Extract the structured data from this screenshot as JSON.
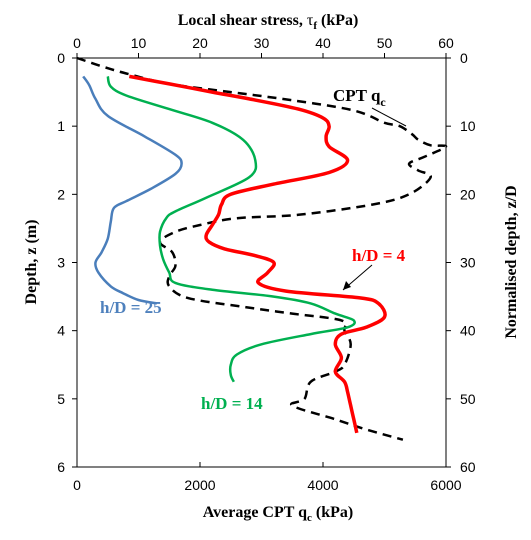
{
  "chart_data": {
    "type": "line",
    "title": "",
    "x_bottom": {
      "label_main": "Average CPT q",
      "label_sub": "c",
      "label_unit": " (kPa)",
      "range": [
        0,
        6000
      ],
      "ticks": [
        "0",
        "2000",
        "4000",
        "6000"
      ],
      "tick_values": [
        0,
        2000,
        4000,
        6000
      ]
    },
    "x_top": {
      "label_main": "Local shear stress, ",
      "label_symbol": "τ",
      "label_sub": "f",
      "label_unit": " (kPa)",
      "range": [
        0,
        60
      ],
      "ticks": [
        "0",
        "10",
        "20",
        "30",
        "40",
        "50",
        "60"
      ],
      "tick_values": [
        0,
        10,
        20,
        30,
        40,
        50,
        60
      ]
    },
    "y_left": {
      "label": "Depth, z (m)",
      "range": [
        0,
        6
      ],
      "ticks": [
        "0",
        "1",
        "2",
        "3",
        "4",
        "5",
        "6"
      ],
      "tick_values": [
        0,
        1,
        2,
        3,
        4,
        5,
        6
      ]
    },
    "y_right": {
      "label": "Normalised depth, z/D",
      "range": [
        0,
        60
      ],
      "ticks": [
        "0",
        "10",
        "20",
        "30",
        "40",
        "50",
        "60"
      ],
      "tick_values": [
        0,
        10,
        20,
        30,
        40,
        50,
        60
      ]
    },
    "series": [
      {
        "name": "CPT qc",
        "axis": "bottom",
        "color": "#000000",
        "dash": true,
        "points": [
          [
            0,
            0
          ],
          [
            500,
            0.15
          ],
          [
            900,
            0.25
          ],
          [
            1500,
            0.38
          ],
          [
            2500,
            0.5
          ],
          [
            3500,
            0.62
          ],
          [
            4500,
            0.77
          ],
          [
            5000,
            0.95
          ],
          [
            5250,
            1.0
          ],
          [
            5450,
            1.12
          ],
          [
            5550,
            1.2
          ],
          [
            5750,
            1.28
          ],
          [
            6000,
            1.3
          ],
          [
            5650,
            1.45
          ],
          [
            5400,
            1.55
          ],
          [
            5550,
            1.65
          ],
          [
            5750,
            1.75
          ],
          [
            5400,
            2.0
          ],
          [
            4800,
            2.15
          ],
          [
            3600,
            2.3
          ],
          [
            2600,
            2.35
          ],
          [
            2000,
            2.45
          ],
          [
            1600,
            2.55
          ],
          [
            1350,
            2.7
          ],
          [
            1550,
            2.85
          ],
          [
            1600,
            3.05
          ],
          [
            1500,
            3.2
          ],
          [
            1500,
            3.35
          ],
          [
            1800,
            3.52
          ],
          [
            2700,
            3.65
          ],
          [
            3500,
            3.75
          ],
          [
            4300,
            3.85
          ],
          [
            4350,
            4.0
          ],
          [
            4450,
            4.2
          ],
          [
            4350,
            4.5
          ],
          [
            4200,
            4.6
          ],
          [
            3800,
            4.75
          ],
          [
            3700,
            5.0
          ],
          [
            3500,
            5.1
          ],
          [
            4200,
            5.3
          ],
          [
            4700,
            5.45
          ],
          [
            5300,
            5.6
          ]
        ]
      },
      {
        "name": "h/D = 4",
        "axis": "top",
        "color": "#ff0000",
        "dash": false,
        "points": [
          [
            8.5,
            0.27
          ],
          [
            15,
            0.38
          ],
          [
            22,
            0.5
          ],
          [
            28,
            0.6
          ],
          [
            36,
            0.75
          ],
          [
            40,
            0.88
          ],
          [
            41,
            1.0
          ],
          [
            40.5,
            1.15
          ],
          [
            41,
            1.3
          ],
          [
            44,
            1.5
          ],
          [
            41,
            1.68
          ],
          [
            32,
            1.85
          ],
          [
            25,
            2.0
          ],
          [
            23.5,
            2.15
          ],
          [
            23,
            2.3
          ],
          [
            22,
            2.45
          ],
          [
            21,
            2.6
          ],
          [
            21.5,
            2.7
          ],
          [
            24,
            2.8
          ],
          [
            29,
            2.9
          ],
          [
            32,
            3.0
          ],
          [
            31,
            3.15
          ],
          [
            29.5,
            3.3
          ],
          [
            34,
            3.42
          ],
          [
            46,
            3.52
          ],
          [
            49,
            3.6
          ],
          [
            50,
            3.8
          ],
          [
            47,
            3.95
          ],
          [
            43,
            4.05
          ],
          [
            42,
            4.2
          ],
          [
            43,
            4.4
          ],
          [
            42,
            4.6
          ],
          [
            43.5,
            4.75
          ],
          [
            44,
            4.9
          ],
          [
            44.5,
            5.1
          ],
          [
            45,
            5.3
          ],
          [
            45.5,
            5.5
          ]
        ]
      },
      {
        "name": "h/D = 14",
        "axis": "top",
        "color": "#00b050",
        "dash": false,
        "points": [
          [
            5,
            0.27
          ],
          [
            5.5,
            0.42
          ],
          [
            8,
            0.55
          ],
          [
            15,
            0.75
          ],
          [
            22,
            0.95
          ],
          [
            27,
            1.2
          ],
          [
            29,
            1.5
          ],
          [
            28,
            1.75
          ],
          [
            21,
            2.05
          ],
          [
            16,
            2.25
          ],
          [
            14.5,
            2.35
          ],
          [
            13.5,
            2.55
          ],
          [
            13.5,
            2.75
          ],
          [
            14,
            2.95
          ],
          [
            15,
            3.15
          ],
          [
            16,
            3.3
          ],
          [
            22,
            3.4
          ],
          [
            32,
            3.5
          ],
          [
            38,
            3.6
          ],
          [
            42,
            3.75
          ],
          [
            45,
            3.85
          ],
          [
            44,
            3.95
          ],
          [
            38,
            4.05
          ],
          [
            30,
            4.2
          ],
          [
            26,
            4.35
          ],
          [
            25,
            4.5
          ],
          [
            25,
            4.65
          ],
          [
            25.5,
            4.75
          ]
        ]
      },
      {
        "name": "h/D = 25",
        "axis": "top",
        "color": "#4a7ebb",
        "dash": false,
        "points": [
          [
            1,
            0.27
          ],
          [
            2,
            0.4
          ],
          [
            3,
            0.6
          ],
          [
            5,
            0.85
          ],
          [
            11,
            1.15
          ],
          [
            16,
            1.42
          ],
          [
            17,
            1.55
          ],
          [
            16,
            1.7
          ],
          [
            12,
            1.92
          ],
          [
            8,
            2.1
          ],
          [
            6,
            2.2
          ],
          [
            5.5,
            2.4
          ],
          [
            5,
            2.65
          ],
          [
            4,
            2.85
          ],
          [
            3,
            3.0
          ],
          [
            3.5,
            3.15
          ],
          [
            5.5,
            3.35
          ],
          [
            7.5,
            3.45
          ],
          [
            10,
            3.55
          ],
          [
            13,
            3.6
          ]
        ]
      }
    ],
    "annotations": {
      "cpt_label_main": "CPT q",
      "cpt_label_sub": "c",
      "hd4_label": "h/D = 4",
      "hd14_label": "h/D = 14",
      "hd25_label": "h/D = 25"
    },
    "colors": {
      "black": "#000000",
      "red": "#ff0000",
      "green": "#00b050",
      "blue": "#4a7ebb",
      "blue_label": "#4f81bd"
    }
  }
}
